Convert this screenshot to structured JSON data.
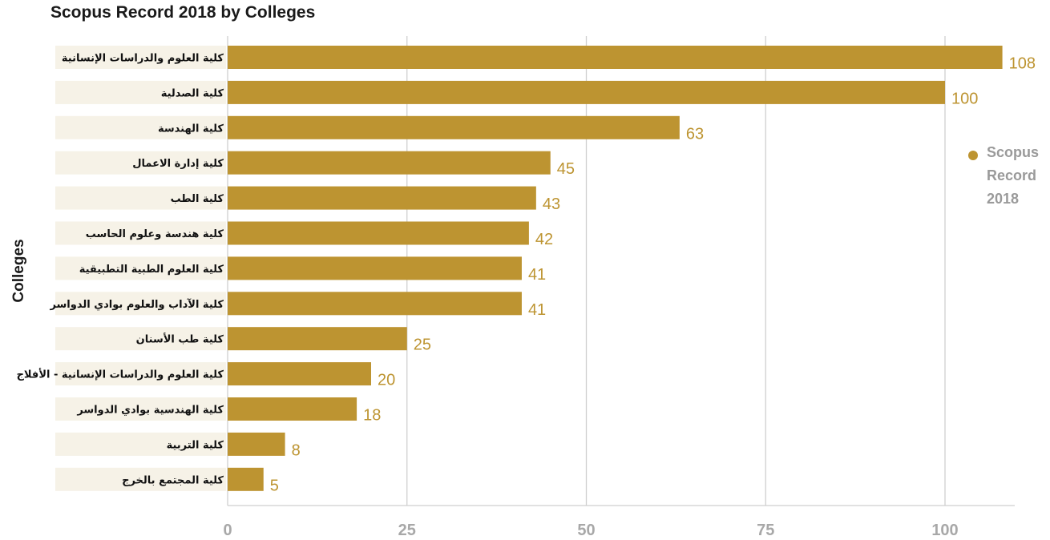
{
  "chart_data": {
    "type": "bar",
    "orientation": "horizontal",
    "title": "Scopus Record 2018 by Colleges",
    "ylabel": "Colleges",
    "xlabel": "",
    "xlim": [
      0,
      110
    ],
    "x_ticks": [
      "0",
      "25",
      "50",
      "75",
      "100"
    ],
    "grid": "vertical",
    "legend_position": "right",
    "categories": [
      "كلية العلوم والدراسات الإنسانية",
      "كلية الصدلية",
      "كلية الهندسة",
      "كلية إدارة الاعمال",
      "كلية الطب",
      "كلية هندسة وعلوم الحاسب",
      "كلية العلوم الطبية التطبيقية",
      "كلية الآداب والعلوم بوادي الدواسر",
      "كلية طب الأسنان",
      "كلية العلوم والدراسات الإنسانية - الأفلاج",
      "كلية الهندسية بوادي الدواسر",
      "كلية التربية",
      "كلية المجتمع بالخرج"
    ],
    "series": [
      {
        "name": "Scopus Record 2018",
        "color": "#bd9431",
        "values": [
          108,
          100,
          63,
          45,
          43,
          42,
          41,
          41,
          25,
          20,
          18,
          8,
          5
        ]
      }
    ]
  },
  "colors": {
    "bar": "#bd9431",
    "value_label": "#bd9431",
    "category_band": "#f6f2e7",
    "grid": "#cfcfcf"
  }
}
